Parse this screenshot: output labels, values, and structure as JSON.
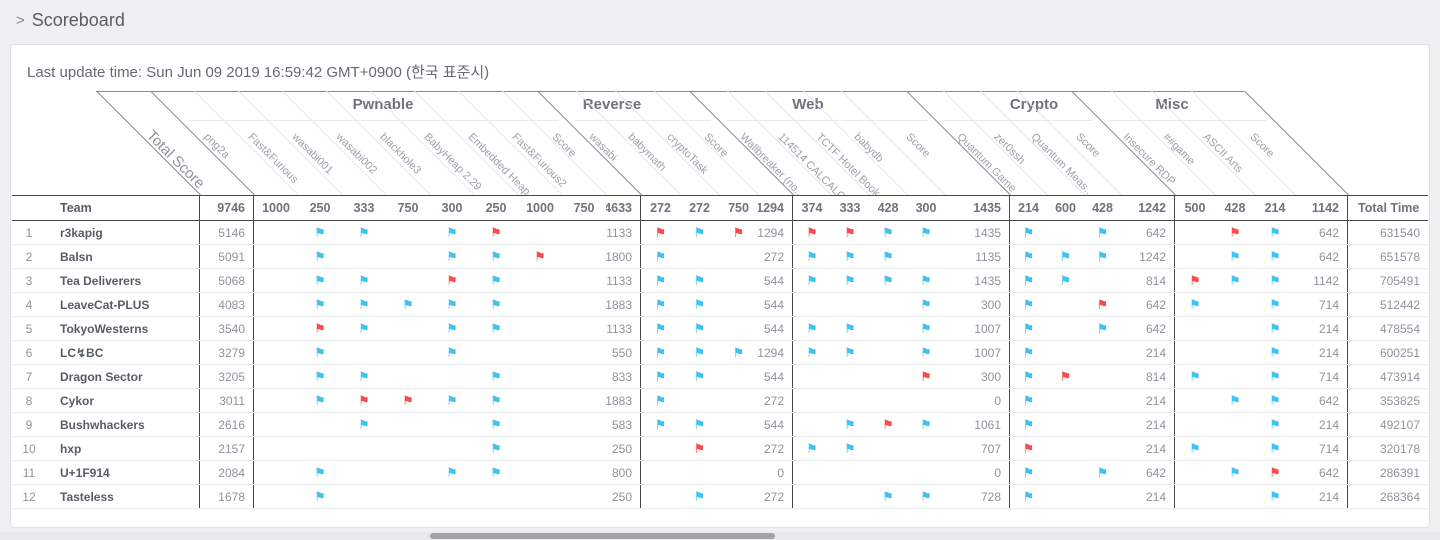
{
  "breadcrumb": {
    "chevron": "›",
    "title": "Scoreboard"
  },
  "last_update": "Last update time: Sun Jun 09 2019 16:59:42 GMT+0900 (한국 표준시)",
  "colors": {
    "flag_blue": "#3ec1f3",
    "flag_red": "#fb4b4b"
  },
  "table": {
    "team_header": "Team",
    "total_time_header": "Total Time",
    "total_score_label": "Total Score",
    "total_score_max": "9746",
    "sections": [
      {
        "name": "Pwnable",
        "score_header": "Score",
        "score_max": "4633",
        "challenges": [
          {
            "label": "png2a",
            "points": "1000"
          },
          {
            "label": "Fast&Furious",
            "points": "250"
          },
          {
            "label": "wasabi001",
            "points": "333"
          },
          {
            "label": "wasabi002",
            "points": "750"
          },
          {
            "label": "blackhole3",
            "points": "300"
          },
          {
            "label": "BabyHeap 2.29",
            "points": "250"
          },
          {
            "label": "Embedded Heap",
            "points": "1000"
          },
          {
            "label": "Fast&Furious2",
            "points": "750"
          }
        ]
      },
      {
        "name": "Reverse",
        "score_header": "Score",
        "score_max": "1294",
        "challenges": [
          {
            "label": "wasabi",
            "points": "272"
          },
          {
            "label": "babymath",
            "points": "272"
          },
          {
            "label": "cryptoTask",
            "points": "750"
          }
        ]
      },
      {
        "name": "Web",
        "score_header": "Score",
        "score_max": "1435",
        "challenges": [
          {
            "label": "Wallbreaker (no...",
            "points": "374"
          },
          {
            "label": "114514 CALCALCA...",
            "points": "333"
          },
          {
            "label": "TCTF Hotel Book...",
            "points": "428"
          },
          {
            "label": "babydb",
            "points": "300"
          }
        ]
      },
      {
        "name": "Crypto",
        "score_header": "Score",
        "score_max": "1242",
        "challenges": [
          {
            "label": "Quantum Game",
            "points": "214"
          },
          {
            "label": "zer0ssh",
            "points": "600"
          },
          {
            "label": "Quantum Meas...",
            "points": "428"
          }
        ]
      },
      {
        "name": "Misc",
        "score_header": "Score",
        "score_max": "1142",
        "challenges": [
          {
            "label": "Insecure RDP",
            "points": "500"
          },
          {
            "label": "##game",
            "points": "428"
          },
          {
            "label": "ASCII Arts",
            "points": "214"
          }
        ]
      }
    ],
    "rows": [
      {
        "rank": "1",
        "team": "r3kapig",
        "total": "5146",
        "total_time": "631540",
        "sections": [
          {
            "flags": [
              "",
              "b",
              "b",
              "",
              "b",
              "r",
              "",
              ""
            ],
            "score": "1133"
          },
          {
            "flags": [
              "r",
              "b",
              "r"
            ],
            "score": "1294"
          },
          {
            "flags": [
              "r",
              "r",
              "b",
              "b"
            ],
            "score": "1435"
          },
          {
            "flags": [
              "b",
              "",
              "b"
            ],
            "score": "642"
          },
          {
            "flags": [
              "",
              "r",
              "b"
            ],
            "score": "642"
          }
        ]
      },
      {
        "rank": "2",
        "team": "Balsn",
        "total": "5091",
        "total_time": "651578",
        "sections": [
          {
            "flags": [
              "",
              "b",
              "",
              "",
              "b",
              "b",
              "r",
              ""
            ],
            "score": "1800"
          },
          {
            "flags": [
              "b",
              "",
              ""
            ],
            "score": "272"
          },
          {
            "flags": [
              "b",
              "b",
              "b",
              ""
            ],
            "score": "1135"
          },
          {
            "flags": [
              "b",
              "b",
              "b"
            ],
            "score": "1242"
          },
          {
            "flags": [
              "",
              "b",
              "b"
            ],
            "score": "642"
          }
        ]
      },
      {
        "rank": "3",
        "team": "Tea Deliverers",
        "total": "5068",
        "total_time": "705491",
        "sections": [
          {
            "flags": [
              "",
              "b",
              "b",
              "",
              "r",
              "b",
              "",
              ""
            ],
            "score": "1133"
          },
          {
            "flags": [
              "b",
              "b",
              ""
            ],
            "score": "544"
          },
          {
            "flags": [
              "b",
              "b",
              "b",
              "b"
            ],
            "score": "1435"
          },
          {
            "flags": [
              "b",
              "b",
              ""
            ],
            "score": "814"
          },
          {
            "flags": [
              "r",
              "b",
              "b"
            ],
            "score": "1142"
          }
        ]
      },
      {
        "rank": "4",
        "team": "LeaveCat-PLUS",
        "total": "4083",
        "total_time": "512442",
        "sections": [
          {
            "flags": [
              "",
              "b",
              "b",
              "b",
              "b",
              "b",
              "",
              ""
            ],
            "score": "1883"
          },
          {
            "flags": [
              "b",
              "b",
              ""
            ],
            "score": "544"
          },
          {
            "flags": [
              "",
              "",
              "",
              "b"
            ],
            "score": "300"
          },
          {
            "flags": [
              "b",
              "",
              "r"
            ],
            "score": "642"
          },
          {
            "flags": [
              "b",
              "",
              "b"
            ],
            "score": "714"
          }
        ]
      },
      {
        "rank": "5",
        "team": "TokyoWesterns",
        "total": "3540",
        "total_time": "478554",
        "sections": [
          {
            "flags": [
              "",
              "r",
              "b",
              "",
              "b",
              "b",
              "",
              ""
            ],
            "score": "1133"
          },
          {
            "flags": [
              "b",
              "b",
              ""
            ],
            "score": "544"
          },
          {
            "flags": [
              "b",
              "b",
              "",
              "b"
            ],
            "score": "1007"
          },
          {
            "flags": [
              "b",
              "",
              "b"
            ],
            "score": "642"
          },
          {
            "flags": [
              "",
              "",
              "b"
            ],
            "score": "214"
          }
        ]
      },
      {
        "rank": "6",
        "team": "LC↯BC",
        "total": "3279",
        "total_time": "600251",
        "sections": [
          {
            "flags": [
              "",
              "b",
              "",
              "",
              "b",
              "",
              "",
              ""
            ],
            "score": "550"
          },
          {
            "flags": [
              "b",
              "b",
              "b"
            ],
            "score": "1294"
          },
          {
            "flags": [
              "b",
              "b",
              "",
              "b"
            ],
            "score": "1007"
          },
          {
            "flags": [
              "b",
              "",
              ""
            ],
            "score": "214"
          },
          {
            "flags": [
              "",
              "",
              "b"
            ],
            "score": "214"
          }
        ]
      },
      {
        "rank": "7",
        "team": "Dragon Sector",
        "total": "3205",
        "total_time": "473914",
        "sections": [
          {
            "flags": [
              "",
              "b",
              "b",
              "",
              "",
              "b",
              "",
              ""
            ],
            "score": "833"
          },
          {
            "flags": [
              "b",
              "b",
              ""
            ],
            "score": "544"
          },
          {
            "flags": [
              "",
              "",
              "",
              "r"
            ],
            "score": "300"
          },
          {
            "flags": [
              "b",
              "r",
              ""
            ],
            "score": "814"
          },
          {
            "flags": [
              "b",
              "",
              "b"
            ],
            "score": "714"
          }
        ]
      },
      {
        "rank": "8",
        "team": "Cykor",
        "total": "3011",
        "total_time": "353825",
        "sections": [
          {
            "flags": [
              "",
              "b",
              "r",
              "r",
              "b",
              "b",
              "",
              ""
            ],
            "score": "1883"
          },
          {
            "flags": [
              "b",
              "",
              ""
            ],
            "score": "272"
          },
          {
            "flags": [
              "",
              "",
              "",
              ""
            ],
            "score": "0"
          },
          {
            "flags": [
              "b",
              "",
              ""
            ],
            "score": "214"
          },
          {
            "flags": [
              "",
              "b",
              "b"
            ],
            "score": "642"
          }
        ]
      },
      {
        "rank": "9",
        "team": "Bushwhackers",
        "total": "2616",
        "total_time": "492107",
        "sections": [
          {
            "flags": [
              "",
              "",
              "b",
              "",
              "",
              "b",
              "",
              ""
            ],
            "score": "583"
          },
          {
            "flags": [
              "b",
              "b",
              ""
            ],
            "score": "544"
          },
          {
            "flags": [
              "",
              "b",
              "r",
              "b"
            ],
            "score": "1061"
          },
          {
            "flags": [
              "b",
              "",
              ""
            ],
            "score": "214"
          },
          {
            "flags": [
              "",
              "",
              "b"
            ],
            "score": "214"
          }
        ]
      },
      {
        "rank": "10",
        "team": "hxp",
        "total": "2157",
        "total_time": "320178",
        "sections": [
          {
            "flags": [
              "",
              "",
              "",
              "",
              "",
              "b",
              "",
              ""
            ],
            "score": "250"
          },
          {
            "flags": [
              "",
              "r",
              ""
            ],
            "score": "272"
          },
          {
            "flags": [
              "b",
              "b",
              "",
              ""
            ],
            "score": "707"
          },
          {
            "flags": [
              "r",
              "",
              ""
            ],
            "score": "214"
          },
          {
            "flags": [
              "b",
              "",
              "b"
            ],
            "score": "714"
          }
        ]
      },
      {
        "rank": "11",
        "team": "U+1F914",
        "total": "2084",
        "total_time": "286391",
        "sections": [
          {
            "flags": [
              "",
              "b",
              "",
              "",
              "b",
              "b",
              "",
              ""
            ],
            "score": "800"
          },
          {
            "flags": [
              "",
              "",
              ""
            ],
            "score": "0"
          },
          {
            "flags": [
              "",
              "",
              "",
              ""
            ],
            "score": "0"
          },
          {
            "flags": [
              "b",
              "",
              "b"
            ],
            "score": "642"
          },
          {
            "flags": [
              "",
              "b",
              "r"
            ],
            "score": "642"
          }
        ]
      },
      {
        "rank": "12",
        "team": "Tasteless",
        "total": "1678",
        "total_time": "268364",
        "sections": [
          {
            "flags": [
              "",
              "b",
              "",
              "",
              "",
              "",
              "",
              ""
            ],
            "score": "250"
          },
          {
            "flags": [
              "",
              "b",
              ""
            ],
            "score": "272"
          },
          {
            "flags": [
              "",
              "",
              "b",
              "b"
            ],
            "score": "728"
          },
          {
            "flags": [
              "b",
              "",
              ""
            ],
            "score": "214"
          },
          {
            "flags": [
              "",
              "",
              "b"
            ],
            "score": "214"
          }
        ]
      }
    ]
  }
}
